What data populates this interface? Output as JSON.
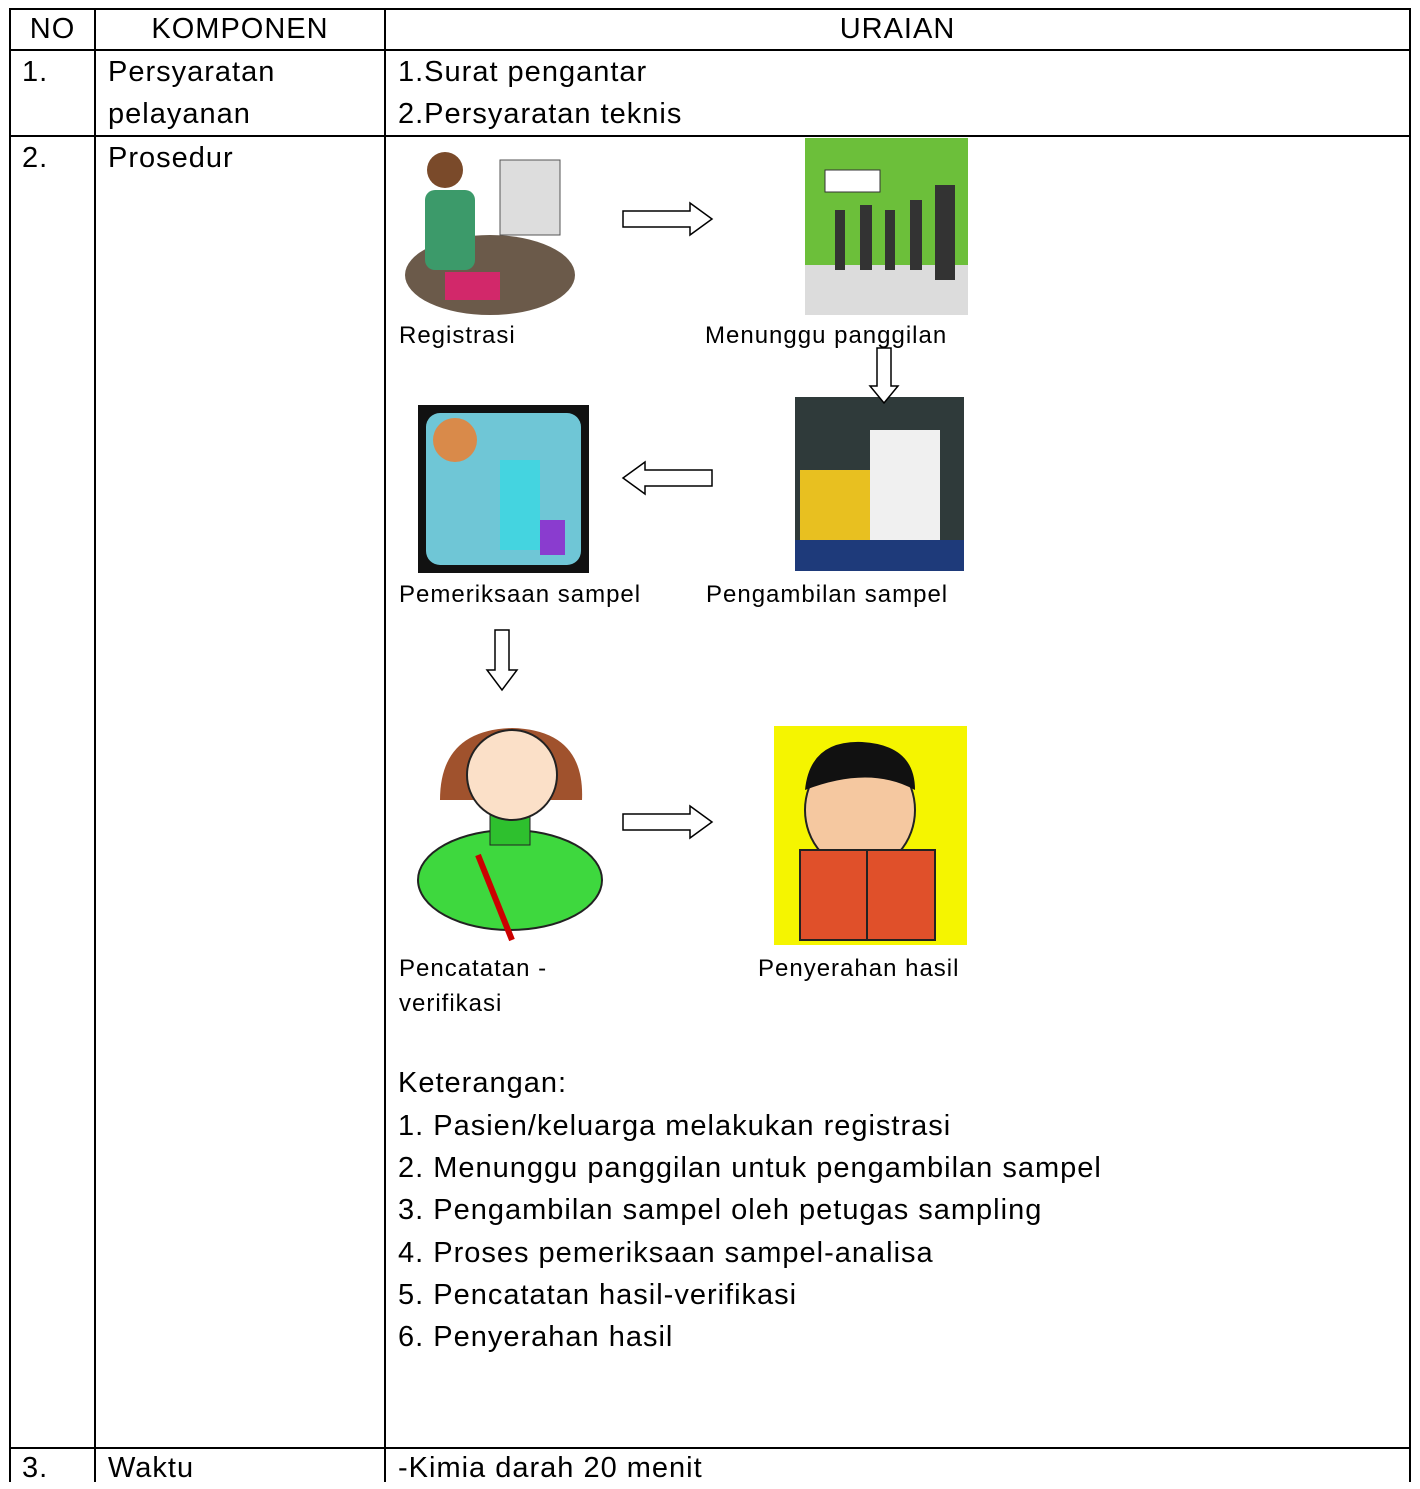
{
  "table": {
    "header": [
      "NO",
      "KOMPONEN",
      "URAIAN"
    ],
    "rows": [
      {
        "no": "1.",
        "component": "Persyaratan pelayanan",
        "details": [
          "1.Surat pengantar",
          "2.Persyaratan teknis"
        ]
      },
      {
        "no": "2.",
        "component": "Prosedur",
        "steps": [
          "Registrasi",
          "Menunggu panggilan",
          "Pemeriksaan sampel",
          "Pengambilan sampel",
          "Pencatatan - verifikasi",
          "Penyerahan hasil"
        ],
        "notes_title": "Keterangan:",
        "notes": [
          "1. Pasien/keluarga melakukan registrasi",
          "2. Menunggu panggilan untuk pengambilan sampel",
          "3. Pengambilan sampel oleh petugas sampling",
          "4. Proses pemeriksaan sampel-analisa",
          "5. Pencatatan hasil-verifikasi",
          "6. Penyerahan hasil"
        ]
      },
      {
        "no": "3.",
        "component": "Waktu",
        "details": [
          "-Kimia darah 20 menit"
        ]
      }
    ]
  }
}
